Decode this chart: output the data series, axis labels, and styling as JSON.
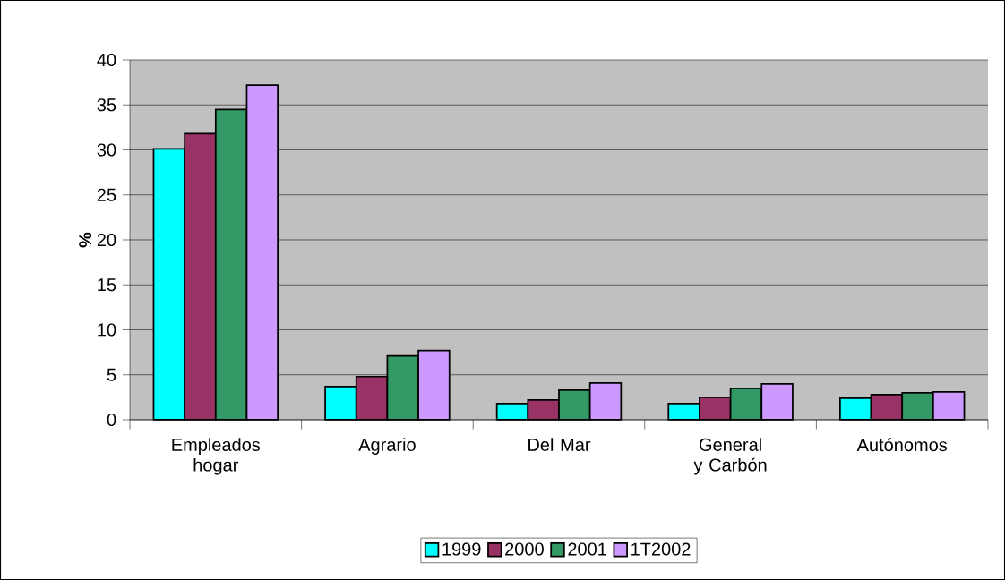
{
  "chart_data": {
    "type": "bar",
    "ylabel": "%",
    "categories": [
      "Empleados hogar",
      "Agrario",
      "Del Mar",
      "General y Carbón",
      "Autónomos"
    ],
    "series": [
      {
        "name": "1999",
        "color": "#00ffff",
        "values": [
          30.1,
          3.7,
          1.8,
          1.8,
          2.4
        ]
      },
      {
        "name": "2000",
        "color": "#993366",
        "values": [
          31.8,
          4.8,
          2.2,
          2.5,
          2.8
        ]
      },
      {
        "name": "2001",
        "color": "#339966",
        "values": [
          34.5,
          7.1,
          3.3,
          3.5,
          3.0
        ]
      },
      {
        "name": "1T2002",
        "color": "#cc99ff",
        "values": [
          37.2,
          7.7,
          4.1,
          4.0,
          3.1
        ]
      }
    ],
    "ylim": [
      0,
      40
    ],
    "yticks": [
      0,
      5,
      10,
      15,
      20,
      25,
      30,
      35,
      40
    ],
    "grid": "y",
    "legend": "bottom"
  }
}
